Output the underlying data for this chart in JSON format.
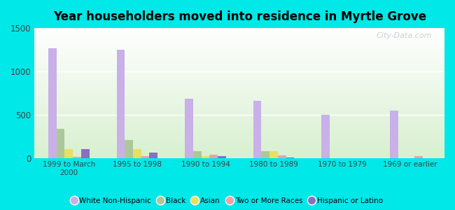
{
  "title": "Year householders moved into residence in Myrtle Grove",
  "categories": [
    "1999 to March\n2000",
    "1995 to 1998",
    "1990 to 1994",
    "1980 to 1989",
    "1970 to 1979",
    "1969 or earlier"
  ],
  "series": {
    "White Non-Hispanic": [
      1270,
      1250,
      690,
      660,
      500,
      550
    ],
    "Black": [
      340,
      215,
      85,
      80,
      5,
      5
    ],
    "Asian": [
      105,
      105,
      30,
      80,
      5,
      5
    ],
    "Two or More Races": [
      20,
      25,
      45,
      35,
      5,
      25
    ],
    "Hispanic or Latino": [
      110,
      65,
      30,
      10,
      5,
      5
    ]
  },
  "colors": {
    "White Non-Hispanic": "#c9b0e8",
    "Black": "#adc898",
    "Asian": "#e8e060",
    "Two or More Races": "#f0a0a8",
    "Hispanic or Latino": "#8870c0"
  },
  "ylim": [
    0,
    1500
  ],
  "yticks": [
    0,
    500,
    1000,
    1500
  ],
  "background_outer": "#00e8e8",
  "bar_width": 0.12,
  "watermark": "City-Data.com"
}
